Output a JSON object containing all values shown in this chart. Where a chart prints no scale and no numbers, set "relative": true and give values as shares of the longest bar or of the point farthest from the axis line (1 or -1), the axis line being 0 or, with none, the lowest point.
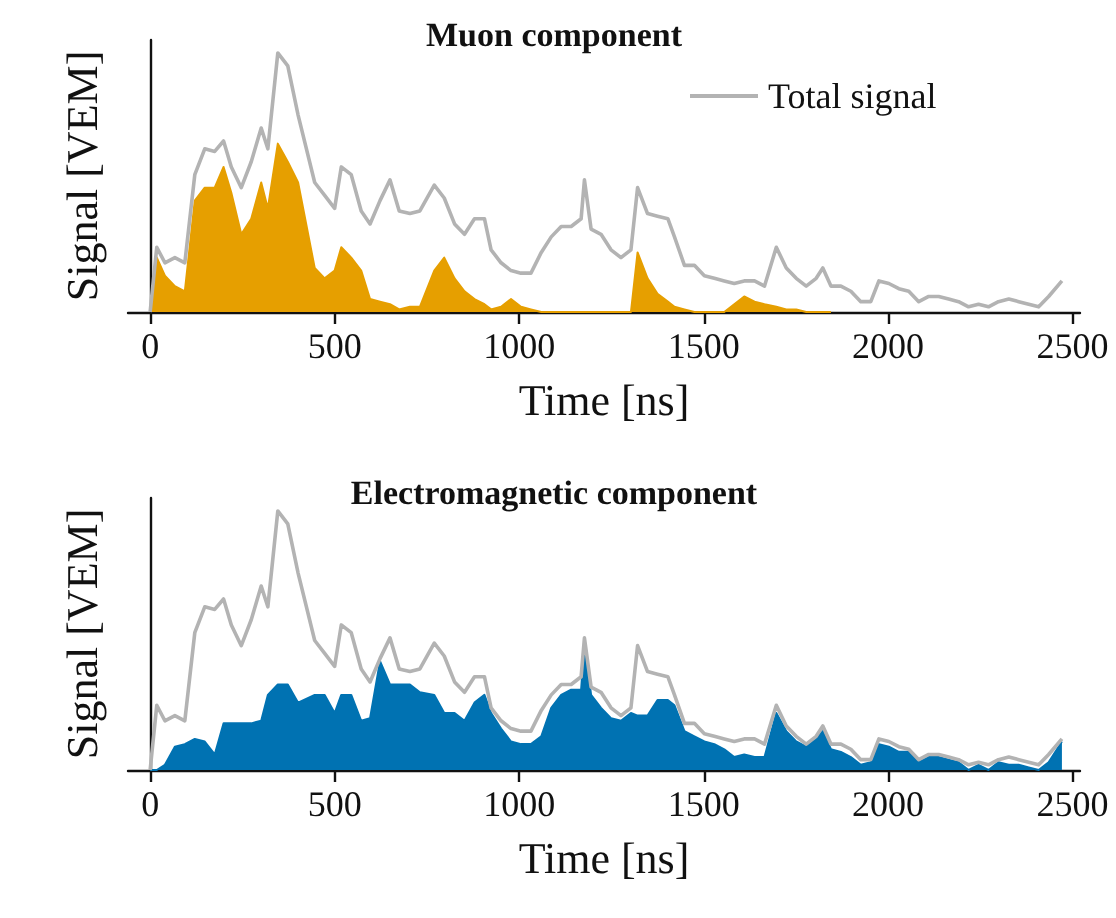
{
  "chart_data": [
    {
      "type": "line",
      "title": "Muon component",
      "xlabel": "Time [ns]",
      "ylabel": "Signal [VEM]",
      "relative": true,
      "legend": "top right",
      "marker": "none",
      "xlim": [
        -60,
        2520
      ],
      "xticks": [
        0,
        500,
        1000,
        1500,
        2000,
        2500
      ],
      "x": [
        0,
        18,
        40,
        67,
        94,
        121,
        148,
        175,
        199,
        220,
        247,
        274,
        301,
        319,
        346,
        373,
        401,
        446,
        473,
        500,
        518,
        545,
        572,
        596,
        623,
        650,
        675,
        704,
        731,
        770,
        797,
        825,
        852,
        879,
        906,
        924,
        951,
        978,
        1005,
        1032,
        1060,
        1087,
        1114,
        1141,
        1168,
        1177,
        1195,
        1222,
        1249,
        1276,
        1303,
        1321,
        1348,
        1375,
        1403,
        1421,
        1448,
        1475,
        1502,
        1529,
        1556,
        1583,
        1610,
        1638,
        1665,
        1697,
        1724,
        1751,
        1778,
        1805,
        1823,
        1845,
        1872,
        1899,
        1926,
        1953,
        1975,
        2002,
        2029,
        2056,
        2083,
        2110,
        2137,
        2164,
        2191,
        2218,
        2245,
        2272,
        2299,
        2327,
        2354,
        2381,
        2408,
        2435,
        2471
      ],
      "series": [
        {
          "type": "area",
          "color": "#e69f00",
          "values": [
            0,
            0.21,
            0.14,
            0.1,
            0.08,
            0.43,
            0.48,
            0.48,
            0.56,
            0.46,
            0.3,
            0.36,
            0.5,
            0.4,
            0.65,
            0.58,
            0.5,
            0.17,
            0.13,
            0.16,
            0.25,
            0.21,
            0.16,
            0.05,
            0.04,
            0.03,
            0.01,
            0.02,
            0.02,
            0.16,
            0.21,
            0.13,
            0.08,
            0.05,
            0.03,
            0.01,
            0.02,
            0.05,
            0.02,
            0.01,
            0,
            0,
            0,
            0,
            0,
            0,
            0,
            0,
            0,
            0,
            0,
            0.23,
            0.13,
            0.07,
            0.04,
            0.02,
            0.01,
            0,
            0,
            0,
            0,
            0.03,
            0.06,
            0.04,
            0.03,
            0.02,
            0.01,
            0.01,
            0,
            0,
            0,
            0,
            null,
            null,
            null,
            null,
            null,
            null,
            null,
            null,
            null,
            null,
            null,
            null,
            null,
            null,
            null,
            null,
            null,
            null,
            null,
            null,
            null,
            null,
            null
          ]
        },
        {
          "type": "line",
          "name": "Total signal",
          "color": "#b3b3b3",
          "values": [
            0,
            0.25,
            0.19,
            0.21,
            0.19,
            0.53,
            0.63,
            0.62,
            0.66,
            0.56,
            0.48,
            0.58,
            0.71,
            0.63,
            1,
            0.95,
            0.76,
            0.5,
            0.45,
            0.4,
            0.56,
            0.53,
            0.39,
            0.34,
            0.43,
            0.51,
            0.39,
            0.38,
            0.39,
            0.49,
            0.44,
            0.34,
            0.3,
            0.36,
            0.36,
            0.24,
            0.19,
            0.16,
            0.15,
            0.15,
            0.23,
            0.29,
            0.33,
            0.33,
            0.36,
            0.51,
            0.32,
            0.3,
            0.24,
            0.21,
            0.24,
            0.48,
            0.38,
            0.37,
            0.36,
            0.29,
            0.18,
            0.18,
            0.14,
            0.13,
            0.12,
            0.11,
            0.12,
            0.12,
            0.1,
            0.25,
            0.17,
            0.13,
            0.1,
            0.13,
            0.17,
            0.1,
            0.1,
            0.08,
            0.04,
            0.04,
            0.12,
            0.11,
            0.09,
            0.08,
            0.04,
            0.06,
            0.06,
            0.05,
            0.04,
            0.02,
            0.03,
            0.02,
            0.04,
            0.05,
            0.04,
            0.03,
            0.02,
            0.06,
            0.12
          ]
        }
      ]
    },
    {
      "type": "line",
      "title": "Electromagnetic component",
      "xlabel": "Time [ns]",
      "ylabel": "Signal [VEM]",
      "relative": true,
      "marker": "none",
      "xlim": [
        -60,
        2520
      ],
      "xticks": [
        0,
        500,
        1000,
        1500,
        2000,
        2500
      ],
      "x": [
        0,
        18,
        40,
        67,
        94,
        121,
        148,
        175,
        199,
        220,
        247,
        274,
        301,
        319,
        346,
        373,
        401,
        446,
        473,
        500,
        518,
        545,
        572,
        596,
        623,
        650,
        675,
        704,
        731,
        770,
        797,
        825,
        852,
        879,
        906,
        924,
        951,
        978,
        1005,
        1032,
        1060,
        1087,
        1114,
        1141,
        1168,
        1177,
        1195,
        1222,
        1249,
        1276,
        1303,
        1321,
        1348,
        1375,
        1403,
        1421,
        1448,
        1475,
        1502,
        1529,
        1556,
        1583,
        1610,
        1638,
        1665,
        1697,
        1724,
        1751,
        1778,
        1805,
        1823,
        1845,
        1872,
        1899,
        1926,
        1953,
        1975,
        2002,
        2029,
        2056,
        2083,
        2110,
        2137,
        2164,
        2191,
        2218,
        2245,
        2272,
        2299,
        2327,
        2354,
        2381,
        2408,
        2435,
        2471
      ],
      "series": [
        {
          "type": "area",
          "color": "#0072b2",
          "values": [
            0,
            0,
            0.02,
            0.09,
            0.1,
            0.12,
            0.11,
            0.06,
            0.18,
            0.18,
            0.18,
            0.18,
            0.19,
            0.29,
            0.33,
            0.33,
            0.26,
            0.29,
            0.29,
            0.22,
            0.29,
            0.29,
            0.19,
            0.2,
            0.42,
            0.33,
            0.33,
            0.33,
            0.3,
            0.29,
            0.22,
            0.22,
            0.19,
            0.26,
            0.29,
            0.22,
            0.16,
            0.11,
            0.1,
            0.1,
            0.13,
            0.24,
            0.29,
            0.31,
            0.31,
            0.49,
            0.29,
            0.24,
            0.2,
            0.19,
            0.22,
            0.21,
            0.21,
            0.27,
            0.27,
            0.25,
            0.15,
            0.13,
            0.11,
            0.1,
            0.08,
            0.05,
            0.06,
            0.05,
            0.05,
            0.22,
            0.15,
            0.11,
            0.09,
            0.12,
            0.15,
            0.08,
            0.07,
            0.05,
            0.02,
            0.03,
            0.1,
            0.09,
            0.07,
            0.07,
            0.03,
            0.05,
            0.05,
            0.04,
            0.03,
            0,
            0.02,
            0,
            0.03,
            0.02,
            0.02,
            0.01,
            0,
            0.03,
            0.11
          ]
        },
        {
          "type": "line",
          "color": "#b3b3b3",
          "values": [
            0,
            0.25,
            0.19,
            0.21,
            0.19,
            0.53,
            0.63,
            0.62,
            0.66,
            0.56,
            0.48,
            0.58,
            0.71,
            0.63,
            1,
            0.95,
            0.76,
            0.5,
            0.45,
            0.4,
            0.56,
            0.53,
            0.39,
            0.34,
            0.43,
            0.51,
            0.39,
            0.38,
            0.39,
            0.49,
            0.44,
            0.34,
            0.3,
            0.36,
            0.36,
            0.24,
            0.19,
            0.16,
            0.15,
            0.15,
            0.23,
            0.29,
            0.33,
            0.33,
            0.36,
            0.51,
            0.32,
            0.3,
            0.24,
            0.21,
            0.24,
            0.48,
            0.38,
            0.37,
            0.36,
            0.29,
            0.18,
            0.18,
            0.14,
            0.13,
            0.12,
            0.11,
            0.12,
            0.12,
            0.1,
            0.25,
            0.17,
            0.13,
            0.1,
            0.13,
            0.17,
            0.1,
            0.1,
            0.08,
            0.04,
            0.04,
            0.12,
            0.11,
            0.09,
            0.08,
            0.04,
            0.06,
            0.06,
            0.05,
            0.04,
            0.02,
            0.03,
            0.02,
            0.04,
            0.05,
            0.04,
            0.03,
            0.02,
            0.06,
            0.12
          ]
        }
      ]
    }
  ]
}
